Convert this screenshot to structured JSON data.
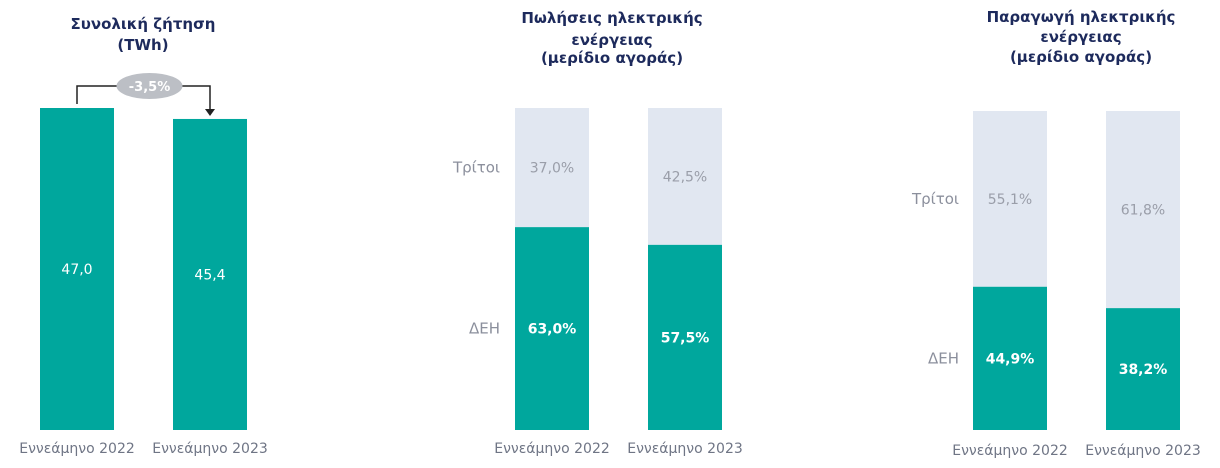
{
  "colors": {
    "dei": "#00a79d",
    "third": "#e1e7f1",
    "title": "#1d2a5c",
    "badge": "#bcbfc5",
    "arrow": "#222222"
  },
  "chart_data": [
    {
      "type": "bar",
      "title": [
        "Συνολική ζήτηση",
        "(TWh)"
      ],
      "categories": [
        "Εννεάμηνο 2022",
        "Εννεάμηνο 2023"
      ],
      "series": [
        {
          "values": [
            47.0,
            45.4
          ]
        }
      ],
      "value_labels": [
        "47,0",
        "45,4"
      ],
      "change_label": "-3,5%",
      "ylim": [
        0,
        47.0
      ]
    },
    {
      "type": "bar",
      "stacked": true,
      "title": [
        "Πωλήσεις ηλεκτρικής",
        "ενέργειας",
        "(μερίδιο αγοράς)"
      ],
      "categories": [
        "Εννεάμηνο 2022",
        "Εννεάμηνο 2023"
      ],
      "series": [
        {
          "name": "ΔΕΗ",
          "values": [
            63.0,
            57.5
          ],
          "labels": [
            "63,0%",
            "57,5%"
          ]
        },
        {
          "name": "Τρίτοι",
          "values": [
            37.0,
            42.5
          ],
          "labels": [
            "37,0%",
            "42,5%"
          ]
        }
      ],
      "ylim": [
        0,
        100
      ]
    },
    {
      "type": "bar",
      "stacked": true,
      "title": [
        "Παραγωγή ηλεκτρικής",
        "ενέργειας",
        "(μερίδιο αγοράς)"
      ],
      "categories": [
        "Εννεάμηνο 2022",
        "Εννεάμηνο 2023"
      ],
      "series": [
        {
          "name": "ΔΕΗ",
          "values": [
            44.9,
            38.2
          ],
          "labels": [
            "44,9%",
            "38,2%"
          ]
        },
        {
          "name": "Τρίτοι",
          "values": [
            55.1,
            61.8
          ],
          "labels": [
            "55,1%",
            "61,8%"
          ]
        }
      ],
      "ylim": [
        0,
        100
      ]
    }
  ]
}
